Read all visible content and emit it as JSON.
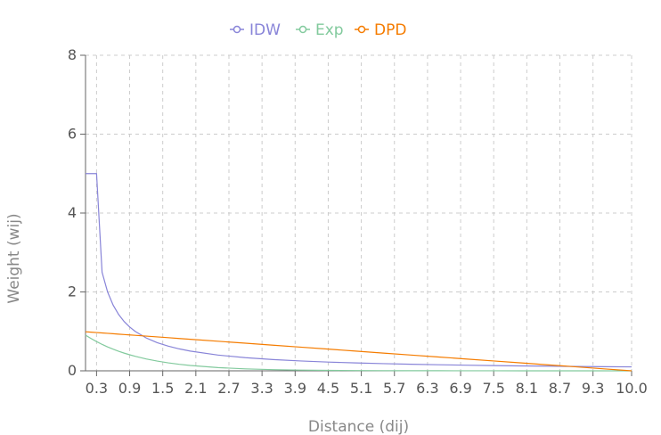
{
  "chart_data": {
    "type": "line",
    "title": "",
    "xlabel": "Distance (dij)",
    "ylabel": "Weight (wij)",
    "xlim": [
      0.1,
      10.0
    ],
    "ylim": [
      0,
      8
    ],
    "yticks": [
      0,
      2,
      4,
      6,
      8
    ],
    "xticks": [
      "0.3",
      "0.9",
      "1.5",
      "2.1",
      "2.7",
      "3.3",
      "3.9",
      "4.5",
      "5.1",
      "5.7",
      "6.3",
      "6.9",
      "7.5",
      "8.1",
      "8.7",
      "9.3",
      "10.0"
    ],
    "grid": true,
    "legend_position": "top-center",
    "x": [
      0.1,
      0.2,
      0.3,
      0.4,
      0.5,
      0.6,
      0.7,
      0.8,
      0.9,
      1.0,
      1.2,
      1.4,
      1.6,
      1.8,
      2.0,
      2.5,
      3.0,
      3.5,
      4.0,
      4.5,
      5.0,
      5.5,
      6.0,
      6.5,
      7.0,
      7.5,
      8.0,
      8.5,
      9.0,
      9.5,
      10.0
    ],
    "series": [
      {
        "name": "IDW",
        "color": "#8884d8",
        "values": [
          5,
          5,
          5,
          2.5,
          2.0,
          1.667,
          1.429,
          1.25,
          1.111,
          1.0,
          0.833,
          0.714,
          0.625,
          0.556,
          0.5,
          0.4,
          0.333,
          0.286,
          0.25,
          0.222,
          0.2,
          0.182,
          0.167,
          0.154,
          0.143,
          0.133,
          0.125,
          0.118,
          0.111,
          0.105,
          0.1
        ]
      },
      {
        "name": "Exp",
        "color": "#82ca9d",
        "values": [
          0.905,
          0.819,
          0.741,
          0.67,
          0.607,
          0.549,
          0.497,
          0.449,
          0.407,
          0.368,
          0.301,
          0.247,
          0.202,
          0.165,
          0.135,
          0.082,
          0.05,
          0.03,
          0.018,
          0.011,
          0.007,
          0.004,
          0.002,
          0.002,
          0.001,
          0.001,
          0.0,
          0.0,
          0.0,
          0.0,
          0.0
        ]
      },
      {
        "name": "DPD",
        "color": "#f57c00",
        "values": [
          0.99,
          0.98,
          0.97,
          0.96,
          0.95,
          0.94,
          0.93,
          0.92,
          0.91,
          0.9,
          0.88,
          0.86,
          0.84,
          0.82,
          0.8,
          0.75,
          0.7,
          0.65,
          0.6,
          0.55,
          0.5,
          0.45,
          0.4,
          0.35,
          0.3,
          0.25,
          0.2,
          0.15,
          0.1,
          0.05,
          0.0
        ]
      }
    ]
  }
}
